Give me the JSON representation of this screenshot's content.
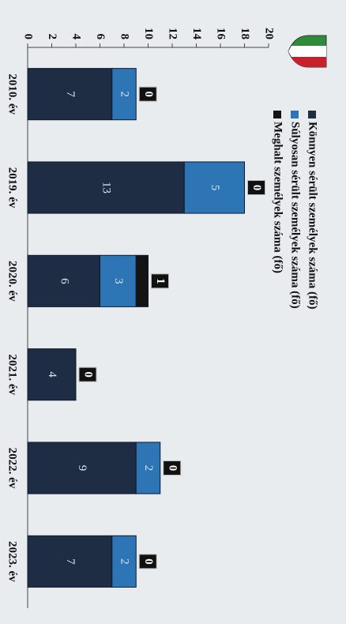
{
  "chart_data": {
    "type": "stacked_bar",
    "categories": [
      "2010. év",
      "2019. év",
      "2020. év",
      "2021. év",
      "2022. év",
      "2023. év"
    ],
    "series": [
      {
        "name": "Könnyen sérült személyek száma (fő)",
        "color": "#1f2d44",
        "values": [
          7,
          13,
          6,
          4,
          9,
          7
        ]
      },
      {
        "name": "Súlyosan sérült személyek száma (fő)",
        "color": "#2e75b6",
        "values": [
          2,
          5,
          3,
          0,
          2,
          2
        ]
      },
      {
        "name": "Meghalt személyek száma (fő)",
        "color": "#141414",
        "values": [
          0,
          0,
          1,
          0,
          0,
          0
        ]
      }
    ],
    "ylim": [
      0,
      20
    ],
    "yticks": [
      0,
      2,
      4,
      6,
      8,
      10,
      12,
      14,
      16,
      18,
      20
    ],
    "grid": false,
    "legend": "top"
  }
}
